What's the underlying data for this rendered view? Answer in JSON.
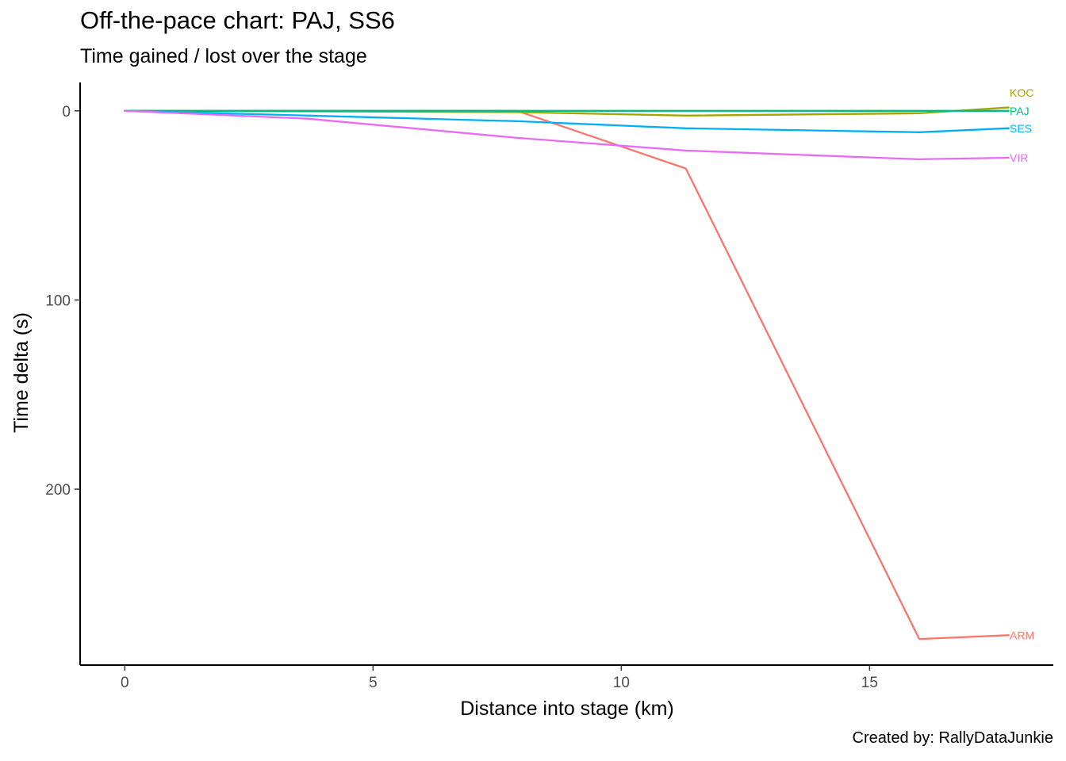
{
  "chart_data": {
    "type": "line",
    "title": "Off-the-pace chart: PAJ, SS6",
    "subtitle": "Time gained / lost over the stage",
    "xlabel": "Distance into stage (km)",
    "ylabel": "Time delta (s)",
    "caption": "Created by: RallyDataJunkie",
    "xlim": [
      -0.9,
      18.7
    ],
    "ylim": [
      -15,
      293
    ],
    "y_reversed": true,
    "x_ticks": [
      0,
      5,
      10,
      15
    ],
    "x_tick_labels": [
      "0",
      "5",
      "10",
      "15"
    ],
    "y_ticks": [
      0,
      100,
      200
    ],
    "y_tick_labels": [
      "0",
      "100",
      "200"
    ],
    "grid": false,
    "legend": "none (labels at line ends)",
    "series": [
      {
        "name": "ARM",
        "color": "#F8766D",
        "x": [
          0,
          3.7,
          7.9,
          11.3,
          16.0,
          17.8
        ],
        "y": [
          0,
          0,
          0,
          30.5,
          279.2,
          277.2
        ]
      },
      {
        "name": "KOC",
        "color": "#A3A500",
        "x": [
          0,
          3.7,
          7.9,
          11.3,
          16.0,
          17.8
        ],
        "y": [
          0,
          0.3,
          0.7,
          2.5,
          1.3,
          -1.8
        ]
      },
      {
        "name": "PAJ",
        "color": "#00BF7D",
        "x": [
          0,
          3.7,
          7.9,
          11.3,
          16.0,
          17.8
        ],
        "y": [
          0,
          0,
          0,
          0,
          0,
          0
        ]
      },
      {
        "name": "SES",
        "color": "#00B0F6",
        "x": [
          0,
          3.7,
          7.9,
          11.3,
          16.0,
          17.8
        ],
        "y": [
          0,
          2.5,
          5.5,
          9.2,
          11.3,
          9.2
        ]
      },
      {
        "name": "VIR",
        "color": "#E76BF3",
        "x": [
          0,
          3.7,
          7.9,
          11.3,
          16.0,
          17.8
        ],
        "y": [
          0,
          4.2,
          14.3,
          21.0,
          25.6,
          24.8
        ]
      }
    ],
    "end_labels": [
      {
        "series": "ARM",
        "text": "ARM",
        "y": 277.2
      },
      {
        "series": "KOC",
        "text": "KOC",
        "y": -9.5
      },
      {
        "series": "PAJ",
        "text": "PAJ",
        "y": 0
      },
      {
        "series": "SES",
        "text": "SES",
        "y": 9.2
      },
      {
        "series": "VIR",
        "text": "VIR",
        "y": 24.8
      }
    ]
  }
}
